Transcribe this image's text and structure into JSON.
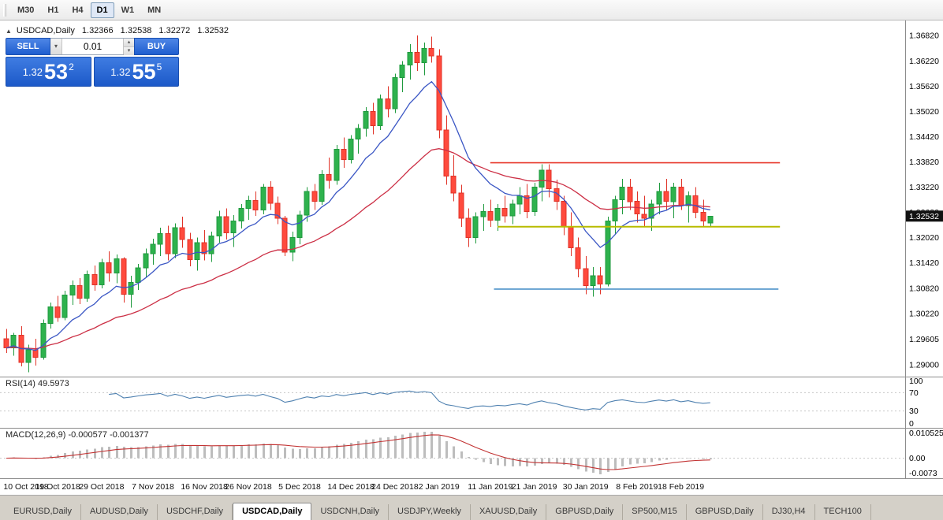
{
  "toolbar": {
    "timeframes": [
      {
        "label": "M30",
        "active": false
      },
      {
        "label": "H1",
        "active": false
      },
      {
        "label": "H4",
        "active": false
      },
      {
        "label": "D1",
        "active": true
      },
      {
        "label": "W1",
        "active": false
      },
      {
        "label": "MN",
        "active": false
      }
    ]
  },
  "chart_header": {
    "symbol": "USDCAD,Daily",
    "open": "1.32366",
    "high": "1.32538",
    "low": "1.32272",
    "close": "1.32532"
  },
  "trade_panel": {
    "sell_label": "SELL",
    "buy_label": "BUY",
    "volume": "0.01",
    "bid_prefix": "1.32",
    "bid_big": "53",
    "bid_sup": "2",
    "ask_prefix": "1.32",
    "ask_big": "55",
    "ask_sup": "5"
  },
  "indicators": {
    "rsi_label": "RSI(14) 49.5973",
    "macd_label": "MACD(12,26,9) -0.000577 -0.001377"
  },
  "colors": {
    "bull": "#2eb24d",
    "bull_border": "#1f9a3e",
    "bear": "#ff4a3d",
    "bear_border": "#e03328",
    "ma_fast": "#3a56c4",
    "ma_slow": "#cc2f45",
    "rsi": "#4f81b0",
    "macd_hist": "#bdbdbd",
    "macd_signal": "#c23232",
    "price_tag_bg": "#111111"
  },
  "chart_data": {
    "type": "candlestick",
    "symbol": "USDCAD",
    "timeframe": "Daily",
    "price_min": 1.2872,
    "price_max": 1.3718,
    "current_price": 1.32532,
    "current_price_label": "1.32532",
    "plot": {
      "axis_x": 1148,
      "x_offset": 8,
      "x_step": 9.3
    },
    "price_axis_ticks": [
      "1.36820",
      "1.36220",
      "1.35620",
      "1.35020",
      "1.34420",
      "1.33820",
      "1.33220",
      "1.32620",
      "1.32020",
      "1.31420",
      "1.30820",
      "1.30220",
      "1.29605",
      "1.29000"
    ],
    "ma_fast_period": 10,
    "ma_slow_period": 32,
    "rsi_period": 14,
    "rsi_levels": [
      100,
      70,
      30,
      0
    ],
    "macd_periods": [
      12,
      26,
      9
    ],
    "macd_axis": {
      "top": "0.010525",
      "zero": "0.00",
      "bottom": "-0.0073"
    },
    "h_lines": [
      {
        "name": "resistance-line",
        "price": 1.338,
        "from_index": 66,
        "to_index": 105.5,
        "color": "#e8392b",
        "width": 1.6
      },
      {
        "name": "mid-yellow-line",
        "price": 1.3228,
        "from_index": 67,
        "to_index": 105.5,
        "color": "#b8bc00",
        "width": 2
      },
      {
        "name": "support-line",
        "price": 1.308,
        "from_index": 66.5,
        "to_index": 105.3,
        "color": "#4a90c8",
        "width": 1.6
      }
    ],
    "x_ticks": [
      {
        "index": 0,
        "label": "10 Oct 2018"
      },
      {
        "index": 7,
        "label": "19 Oct 2018"
      },
      {
        "index": 13,
        "label": "29 Oct 2018"
      },
      {
        "index": 20,
        "label": "7 Nov 2018"
      },
      {
        "index": 27,
        "label": "16 Nov 2018"
      },
      {
        "index": 33,
        "label": "26 Nov 2018"
      },
      {
        "index": 40,
        "label": "5 Dec 2018"
      },
      {
        "index": 47,
        "label": "14 Dec 2018"
      },
      {
        "index": 53,
        "label": "24 Dec 2018"
      },
      {
        "index": 59,
        "label": "2 Jan 2019"
      },
      {
        "index": 66,
        "label": "11 Jan 2019"
      },
      {
        "index": 72,
        "label": "21 Jan 2019"
      },
      {
        "index": 79,
        "label": "30 Jan 2019"
      },
      {
        "index": 86,
        "label": "8 Feb 2019"
      },
      {
        "index": 92,
        "label": "18 Feb 2019"
      }
    ],
    "candles": [
      [
        1.2962,
        1.2985,
        1.2928,
        1.294
      ],
      [
        1.294,
        1.2976,
        1.2922,
        1.297
      ],
      [
        1.297,
        1.2992,
        1.2896,
        1.2906
      ],
      [
        1.2906,
        1.2948,
        1.2882,
        1.2936
      ],
      [
        1.2936,
        1.2962,
        1.2898,
        1.2918
      ],
      [
        1.2918,
        1.3008,
        1.2912,
        1.2998
      ],
      [
        1.2998,
        1.3048,
        1.2986,
        1.3038
      ],
      [
        1.3038,
        1.3064,
        1.3002,
        1.3012
      ],
      [
        1.3012,
        1.3076,
        1.3006,
        1.3066
      ],
      [
        1.3066,
        1.31,
        1.3042,
        1.3088
      ],
      [
        1.3088,
        1.3106,
        1.3044,
        1.3058
      ],
      [
        1.3058,
        1.3124,
        1.305,
        1.3114
      ],
      [
        1.3114,
        1.3136,
        1.3076,
        1.309
      ],
      [
        1.309,
        1.3152,
        1.3082,
        1.3142
      ],
      [
        1.3142,
        1.317,
        1.3098,
        1.3118
      ],
      [
        1.3118,
        1.3162,
        1.3094,
        1.3152
      ],
      [
        1.3152,
        1.3156,
        1.3048,
        1.3068
      ],
      [
        1.3068,
        1.3112,
        1.3036,
        1.3096
      ],
      [
        1.3096,
        1.314,
        1.3078,
        1.313
      ],
      [
        1.313,
        1.3176,
        1.3108,
        1.3164
      ],
      [
        1.3164,
        1.32,
        1.3138,
        1.3186
      ],
      [
        1.3186,
        1.3226,
        1.3158,
        1.3212
      ],
      [
        1.3212,
        1.323,
        1.3148,
        1.3164
      ],
      [
        1.3164,
        1.3236,
        1.3154,
        1.3226
      ],
      [
        1.3226,
        1.3252,
        1.3178,
        1.3198
      ],
      [
        1.3198,
        1.3214,
        1.3134,
        1.315
      ],
      [
        1.315,
        1.3202,
        1.3124,
        1.319
      ],
      [
        1.319,
        1.322,
        1.3148,
        1.3164
      ],
      [
        1.3164,
        1.3216,
        1.3144,
        1.3206
      ],
      [
        1.3206,
        1.3266,
        1.319,
        1.3252
      ],
      [
        1.3252,
        1.3272,
        1.3198,
        1.3214
      ],
      [
        1.3214,
        1.3256,
        1.318,
        1.3242
      ],
      [
        1.3242,
        1.3282,
        1.3224,
        1.3272
      ],
      [
        1.3272,
        1.3302,
        1.3244,
        1.329
      ],
      [
        1.329,
        1.3312,
        1.3254,
        1.3268
      ],
      [
        1.3268,
        1.333,
        1.3258,
        1.3322
      ],
      [
        1.3322,
        1.3336,
        1.3268,
        1.3284
      ],
      [
        1.3284,
        1.33,
        1.3234,
        1.3248
      ],
      [
        1.3248,
        1.3254,
        1.3158,
        1.3168
      ],
      [
        1.3168,
        1.3216,
        1.3146,
        1.3202
      ],
      [
        1.3202,
        1.3266,
        1.3186,
        1.3256
      ],
      [
        1.3256,
        1.3322,
        1.324,
        1.3312
      ],
      [
        1.3312,
        1.333,
        1.3268,
        1.3288
      ],
      [
        1.3288,
        1.3362,
        1.328,
        1.3352
      ],
      [
        1.3352,
        1.3392,
        1.3318,
        1.3338
      ],
      [
        1.3338,
        1.3422,
        1.3328,
        1.3412
      ],
      [
        1.3412,
        1.344,
        1.3368,
        1.3388
      ],
      [
        1.3388,
        1.3446,
        1.3378,
        1.3436
      ],
      [
        1.3436,
        1.3472,
        1.3402,
        1.3462
      ],
      [
        1.3462,
        1.3512,
        1.3442,
        1.3502
      ],
      [
        1.3502,
        1.3522,
        1.3448,
        1.3468
      ],
      [
        1.3468,
        1.3542,
        1.3458,
        1.3532
      ],
      [
        1.3532,
        1.3562,
        1.3488,
        1.3508
      ],
      [
        1.3508,
        1.3592,
        1.3498,
        1.3582
      ],
      [
        1.3582,
        1.3622,
        1.3548,
        1.3612
      ],
      [
        1.3612,
        1.3662,
        1.3578,
        1.3642
      ],
      [
        1.3642,
        1.3682,
        1.3598,
        1.3618
      ],
      [
        1.3618,
        1.3666,
        1.3588,
        1.3652
      ],
      [
        1.3652,
        1.368,
        1.3618,
        1.3634
      ],
      [
        1.3634,
        1.365,
        1.3438,
        1.3458
      ],
      [
        1.3458,
        1.3492,
        1.3328,
        1.3348
      ],
      [
        1.3348,
        1.3398,
        1.3288,
        1.3308
      ],
      [
        1.3308,
        1.3328,
        1.3228,
        1.3248
      ],
      [
        1.3248,
        1.3272,
        1.318,
        1.3202
      ],
      [
        1.3202,
        1.3262,
        1.3188,
        1.3252
      ],
      [
        1.3252,
        1.3282,
        1.3218,
        1.3264
      ],
      [
        1.3264,
        1.3292,
        1.3228,
        1.3244
      ],
      [
        1.3244,
        1.3282,
        1.3218,
        1.3272
      ],
      [
        1.3272,
        1.3302,
        1.3238,
        1.3254
      ],
      [
        1.3254,
        1.3292,
        1.3234,
        1.3282
      ],
      [
        1.3282,
        1.3322,
        1.3258,
        1.3302
      ],
      [
        1.3302,
        1.333,
        1.3248,
        1.3264
      ],
      [
        1.3264,
        1.3332,
        1.3254,
        1.3322
      ],
      [
        1.3322,
        1.3376,
        1.3288,
        1.3362
      ],
      [
        1.3362,
        1.3376,
        1.3298,
        1.3318
      ],
      [
        1.3318,
        1.334,
        1.3268,
        1.3288
      ],
      [
        1.3288,
        1.3302,
        1.3208,
        1.3228
      ],
      [
        1.3228,
        1.3262,
        1.3158,
        1.3178
      ],
      [
        1.3178,
        1.3202,
        1.3108,
        1.3128
      ],
      [
        1.3128,
        1.3158,
        1.3068,
        1.3088
      ],
      [
        1.3088,
        1.3132,
        1.3062,
        1.3112
      ],
      [
        1.3112,
        1.3132,
        1.3068,
        1.3092
      ],
      [
        1.3092,
        1.3252,
        1.3086,
        1.3242
      ],
      [
        1.3242,
        1.3302,
        1.3212,
        1.3292
      ],
      [
        1.3292,
        1.3342,
        1.3258,
        1.3322
      ],
      [
        1.3322,
        1.3342,
        1.3268,
        1.3288
      ],
      [
        1.3288,
        1.3312,
        1.3238,
        1.3258
      ],
      [
        1.3258,
        1.3302,
        1.3228,
        1.3248
      ],
      [
        1.3248,
        1.3292,
        1.3218,
        1.3282
      ],
      [
        1.3282,
        1.3332,
        1.3258,
        1.3312
      ],
      [
        1.3312,
        1.3342,
        1.3268,
        1.3288
      ],
      [
        1.3288,
        1.3332,
        1.3248,
        1.3322
      ],
      [
        1.3322,
        1.3342,
        1.3268,
        1.3278
      ],
      [
        1.3278,
        1.3312,
        1.3238,
        1.3302
      ],
      [
        1.3302,
        1.3322,
        1.3248,
        1.3262
      ],
      [
        1.3262,
        1.3292,
        1.3228,
        1.3242
      ],
      [
        1.32366,
        1.32538,
        1.32272,
        1.32532
      ]
    ]
  },
  "tabs": [
    {
      "label": "EURUSD,Daily",
      "active": false
    },
    {
      "label": "AUDUSD,Daily",
      "active": false
    },
    {
      "label": "USDCHF,Daily",
      "active": false
    },
    {
      "label": "USDCAD,Daily",
      "active": true
    },
    {
      "label": "USDCNH,Daily",
      "active": false
    },
    {
      "label": "USDJPY,Weekly",
      "active": false
    },
    {
      "label": "XAUUSD,Daily",
      "active": false
    },
    {
      "label": "GBPUSD,Daily",
      "active": false
    },
    {
      "label": "SP500,M15",
      "active": false
    },
    {
      "label": "GBPUSD,Daily",
      "active": false
    },
    {
      "label": "DJ30,H4",
      "active": false
    },
    {
      "label": "TECH100",
      "active": false
    }
  ]
}
